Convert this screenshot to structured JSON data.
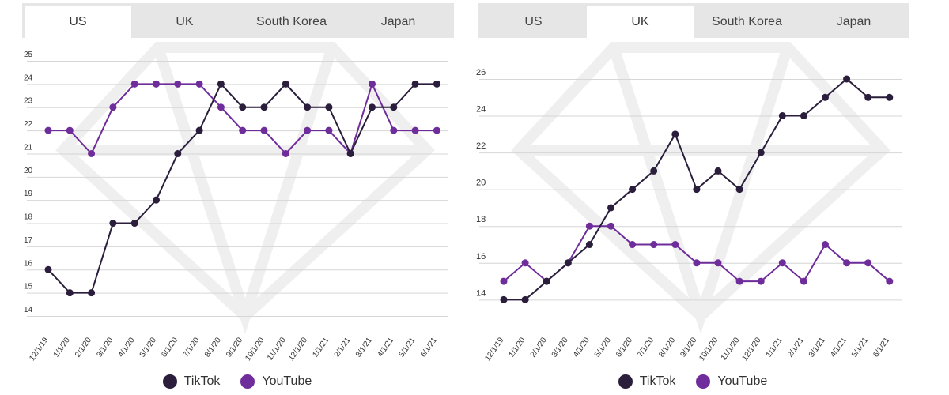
{
  "tabs": [
    "US",
    "UK",
    "South Korea",
    "Japan"
  ],
  "colors": {
    "tiktok": "#2a1e3c",
    "youtube": "#6f2d9b",
    "grid": "#d6d6d6"
  },
  "chart_data": [
    {
      "type": "line",
      "active_tab": "US",
      "categories": [
        "12/1/19",
        "1/1/20",
        "2/1/20",
        "3/1/20",
        "4/1/20",
        "5/1/20",
        "6/1/20",
        "7/1/20",
        "8/1/20",
        "9/1/20",
        "10/1/20",
        "11/1/20",
        "12/1/20",
        "1/1/21",
        "2/1/21",
        "3/1/21",
        "4/1/21",
        "5/1/21",
        "6/1/21"
      ],
      "y_ticks": [
        "25",
        "24",
        "23",
        "22",
        "21",
        "20",
        "19",
        "18",
        "17",
        "16",
        "15",
        "14"
      ],
      "ylim": [
        14,
        25
      ],
      "series": [
        {
          "name": "TikTok",
          "values": [
            16,
            15,
            15,
            18,
            18,
            19,
            21,
            22,
            24,
            23,
            23,
            24,
            23,
            23,
            21,
            23,
            23,
            24,
            24
          ]
        },
        {
          "name": "YouTube",
          "values": [
            22,
            22,
            21,
            23,
            24,
            24,
            24,
            24,
            23,
            22,
            22,
            21,
            22,
            22,
            21,
            24,
            22,
            22,
            22
          ]
        }
      ],
      "legend": [
        "TikTok",
        "YouTube"
      ]
    },
    {
      "type": "line",
      "active_tab": "UK",
      "categories": [
        "12/1/19",
        "1/1/20",
        "2/1/20",
        "3/1/20",
        "4/1/20",
        "5/1/20",
        "6/1/20",
        "7/1/20",
        "8/1/20",
        "9/1/20",
        "10/1/20",
        "11/1/20",
        "12/1/20",
        "1/1/21",
        "2/1/21",
        "3/1/21",
        "4/1/21",
        "5/1/21",
        "6/1/21"
      ],
      "y_ticks": [
        "26",
        "24",
        "22",
        "20",
        "18",
        "16",
        "14"
      ],
      "ylim": [
        13.5,
        26
      ],
      "series": [
        {
          "name": "TikTok",
          "values": [
            14,
            14,
            15,
            16,
            17,
            19,
            20,
            21,
            23,
            20,
            21,
            20,
            22,
            24,
            24,
            25,
            26,
            25,
            25
          ]
        },
        {
          "name": "YouTube",
          "values": [
            15,
            16,
            15,
            16,
            18,
            18,
            17,
            17,
            17,
            16,
            16,
            15,
            15,
            16,
            15,
            17,
            16,
            16,
            15
          ]
        }
      ],
      "legend": [
        "TikTok",
        "YouTube"
      ]
    }
  ]
}
